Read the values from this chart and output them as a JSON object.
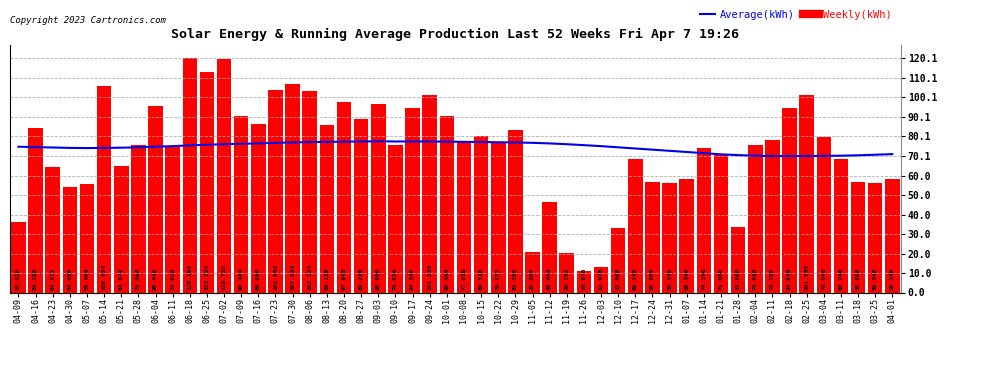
{
  "title": "Solar Energy & Running Average Production Last 52 Weeks Fri Apr 7 19:26",
  "copyright": "Copyright 2023 Cartronics.com",
  "legend_average": "Average(kWh)",
  "legend_weekly": "Weekly(kWh)",
  "yticks": [
    0.0,
    10.0,
    20.0,
    30.0,
    40.0,
    50.0,
    60.0,
    70.1,
    80.1,
    90.1,
    100.1,
    110.1,
    120.1
  ],
  "ylim": [
    0,
    127
  ],
  "bar_color": "#ff0000",
  "avg_line_color": "#0000ee",
  "weekly_label_color": "#ff0000",
  "avg_label_color": "#0000ee",
  "background_color": "#ffffff",
  "grid_color": "#aaaaaa",
  "categories": [
    "04-09",
    "04-16",
    "04-23",
    "04-30",
    "05-07",
    "05-14",
    "05-21",
    "05-28",
    "06-04",
    "06-11",
    "06-18",
    "06-25",
    "07-02",
    "07-09",
    "07-16",
    "07-23",
    "07-30",
    "08-06",
    "08-13",
    "08-20",
    "08-27",
    "09-03",
    "09-10",
    "09-17",
    "09-24",
    "10-01",
    "10-08",
    "10-15",
    "10-22",
    "10-29",
    "11-05",
    "11-12",
    "11-19",
    "11-26",
    "12-03",
    "12-10",
    "12-17",
    "12-24",
    "12-31",
    "01-07",
    "01-14",
    "01-21",
    "01-28",
    "02-04",
    "02-11",
    "02-18",
    "02-25",
    "03-04",
    "03-11",
    "03-18",
    "03-25",
    "04-01"
  ],
  "weekly_values": [
    35.92,
    84.296,
    64.272,
    54.08,
    55.464,
    106.024,
    64.672,
    75.904,
    95.448,
    74.62,
    120.1,
    113.224,
    119.72,
    90.464,
    86.68,
    103.656,
    107.034,
    103.224,
    86.128,
    97.848,
    89.208,
    96.806,
    75.616,
    94.54,
    101.536,
    90.464,
    77.636,
    80.516,
    76.572,
    83.288,
    20.885,
    46.464,
    20.152,
    10.976,
    12.976,
    33.008,
    68.248,
    56.808,
    56.348,
    58.346,
    74.1,
    71.0,
    33.8,
    75.64,
    78.2,
    94.64,
    101.536,
    79.848,
    68.248,
    56.808,
    56.348,
    58.346
  ],
  "avg_values": [
    74.8,
    74.6,
    74.4,
    74.2,
    74.1,
    74.2,
    74.3,
    74.5,
    74.8,
    75.1,
    75.5,
    75.8,
    76.1,
    76.3,
    76.5,
    76.8,
    77.0,
    77.2,
    77.3,
    77.4,
    77.5,
    77.6,
    77.5,
    77.5,
    77.5,
    77.4,
    77.3,
    77.2,
    77.1,
    77.0,
    76.8,
    76.5,
    76.1,
    75.6,
    75.1,
    74.5,
    73.9,
    73.3,
    72.7,
    72.1,
    71.5,
    70.9,
    70.5,
    70.2,
    70.0,
    70.0,
    70.0,
    70.1,
    70.2,
    70.4,
    70.7,
    71.0
  ]
}
